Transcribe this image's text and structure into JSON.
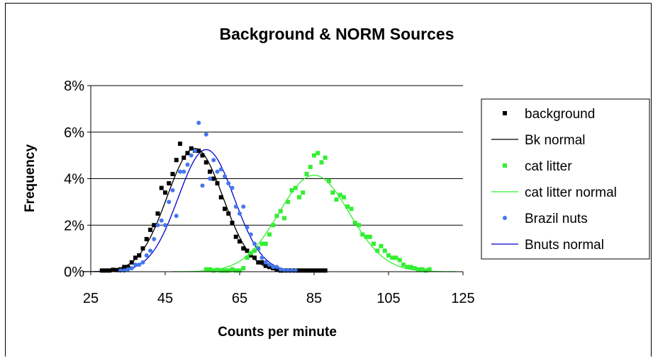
{
  "chart_data": {
    "type": "scatter",
    "title": "Background & NORM Sources",
    "xlabel": "Counts per minute",
    "ylabel": "Frequency",
    "xlim": [
      25,
      125
    ],
    "ylim": [
      0,
      8
    ],
    "x_ticks": [
      "25",
      "45",
      "65",
      "85",
      "105",
      "125"
    ],
    "y_ticks": [
      "0%",
      "2%",
      "4%",
      "6%",
      "8%"
    ],
    "grid": "horizontal",
    "legend_position": "right",
    "series": [
      {
        "name": "background",
        "kind": "points",
        "marker": "square",
        "color": "#000000",
        "x": [
          28,
          29,
          30,
          31,
          32,
          33,
          34,
          35,
          36,
          37,
          38,
          39,
          40,
          41,
          42,
          43,
          44,
          45,
          46,
          47,
          48,
          49,
          50,
          51,
          52,
          53,
          54,
          55,
          56,
          57,
          58,
          59,
          60,
          61,
          62,
          63,
          64,
          65,
          66,
          67,
          68,
          69,
          70,
          71,
          72,
          73,
          74,
          75,
          76,
          77,
          78,
          79,
          80,
          81,
          82,
          83,
          84,
          85,
          86,
          87,
          88
        ],
        "y": [
          0.05,
          0.05,
          0.05,
          0.08,
          0.07,
          0.1,
          0.2,
          0.2,
          0.4,
          0.6,
          0.7,
          1.0,
          1.4,
          1.8,
          2.0,
          2.5,
          3.6,
          3.4,
          3.8,
          4.2,
          4.8,
          5.5,
          4.9,
          5.1,
          5.3,
          5.2,
          5.2,
          5.0,
          4.7,
          4.3,
          4.0,
          3.8,
          3.2,
          2.7,
          2.5,
          2.1,
          1.5,
          1.3,
          1.0,
          0.9,
          0.7,
          0.6,
          0.4,
          0.4,
          0.25,
          0.2,
          0.15,
          0.1,
          0.05,
          0.05,
          0.05,
          0.05,
          0.05,
          0.05,
          0.05,
          0.05,
          0.05,
          0.05,
          0.05,
          0.05,
          0.05
        ]
      },
      {
        "name": "Bk normal",
        "kind": "line",
        "color": "#000000",
        "mean": 53,
        "sd": 7.5,
        "peak": 5.3
      },
      {
        "name": "cat litter",
        "kind": "points",
        "marker": "square",
        "color": "#33ee33",
        "x": [
          56,
          57,
          58,
          59,
          60,
          61,
          62,
          63,
          64,
          65,
          66,
          67,
          68,
          69,
          70,
          71,
          72,
          73,
          74,
          75,
          76,
          77,
          78,
          79,
          80,
          81,
          82,
          83,
          84,
          85,
          86,
          87,
          88,
          89,
          90,
          91,
          92,
          93,
          94,
          95,
          96,
          97,
          98,
          99,
          100,
          101,
          102,
          103,
          104,
          105,
          106,
          107,
          108,
          109,
          110,
          111,
          112,
          113,
          114,
          115,
          116
        ],
        "y": [
          0.1,
          0.1,
          0.05,
          0.08,
          0.05,
          0.05,
          0.05,
          0.1,
          0.05,
          0.05,
          0.15,
          0.6,
          0.8,
          0.9,
          1.0,
          1.2,
          1.2,
          1.6,
          2.0,
          2.4,
          2.6,
          2.3,
          3.0,
          3.5,
          3.6,
          3.2,
          3.4,
          4.2,
          4.5,
          5.0,
          5.1,
          4.7,
          4.9,
          3.9,
          3.4,
          3.1,
          3.3,
          3.2,
          2.8,
          2.7,
          2.1,
          2.0,
          1.6,
          1.5,
          1.5,
          1.2,
          0.9,
          1.1,
          0.9,
          0.7,
          0.6,
          0.6,
          0.5,
          0.3,
          0.2,
          0.2,
          0.15,
          0.1,
          0.1,
          0.05,
          0.1
        ]
      },
      {
        "name": "cat litter normal",
        "kind": "line",
        "color": "#33ee33",
        "mean": 85,
        "sd": 9.5,
        "peak": 4.15
      },
      {
        "name": "Brazil nuts",
        "kind": "points",
        "marker": "circle",
        "color": "#4477ee",
        "x": [
          33,
          34,
          35,
          36,
          37,
          38,
          39,
          40,
          41,
          42,
          43,
          44,
          45,
          46,
          47,
          48,
          49,
          50,
          51,
          52,
          53,
          54,
          55,
          56,
          57,
          58,
          59,
          60,
          61,
          62,
          63,
          64,
          65,
          66,
          67,
          68,
          69,
          70,
          71,
          72,
          73,
          74,
          75,
          76,
          77,
          78,
          79,
          80
        ],
        "y": [
          0.05,
          0.05,
          0.1,
          0.15,
          0.3,
          0.3,
          0.4,
          0.7,
          0.9,
          1.4,
          2.0,
          2.2,
          2.0,
          3.0,
          3.5,
          2.4,
          4.3,
          4.3,
          4.6,
          5.0,
          5.2,
          6.4,
          3.7,
          5.9,
          4.0,
          4.8,
          4.3,
          4.4,
          4.1,
          3.8,
          3.6,
          2.8,
          2.5,
          2.8,
          1.9,
          1.6,
          1.2,
          1.0,
          0.6,
          0.4,
          0.3,
          0.2,
          0.2,
          0.1,
          0.05,
          0.05,
          0.05,
          0.05
        ]
      },
      {
        "name": "Bnuts normal",
        "kind": "line",
        "color": "#0000cc",
        "mean": 56,
        "sd": 7.5,
        "peak": 5.25
      }
    ]
  }
}
